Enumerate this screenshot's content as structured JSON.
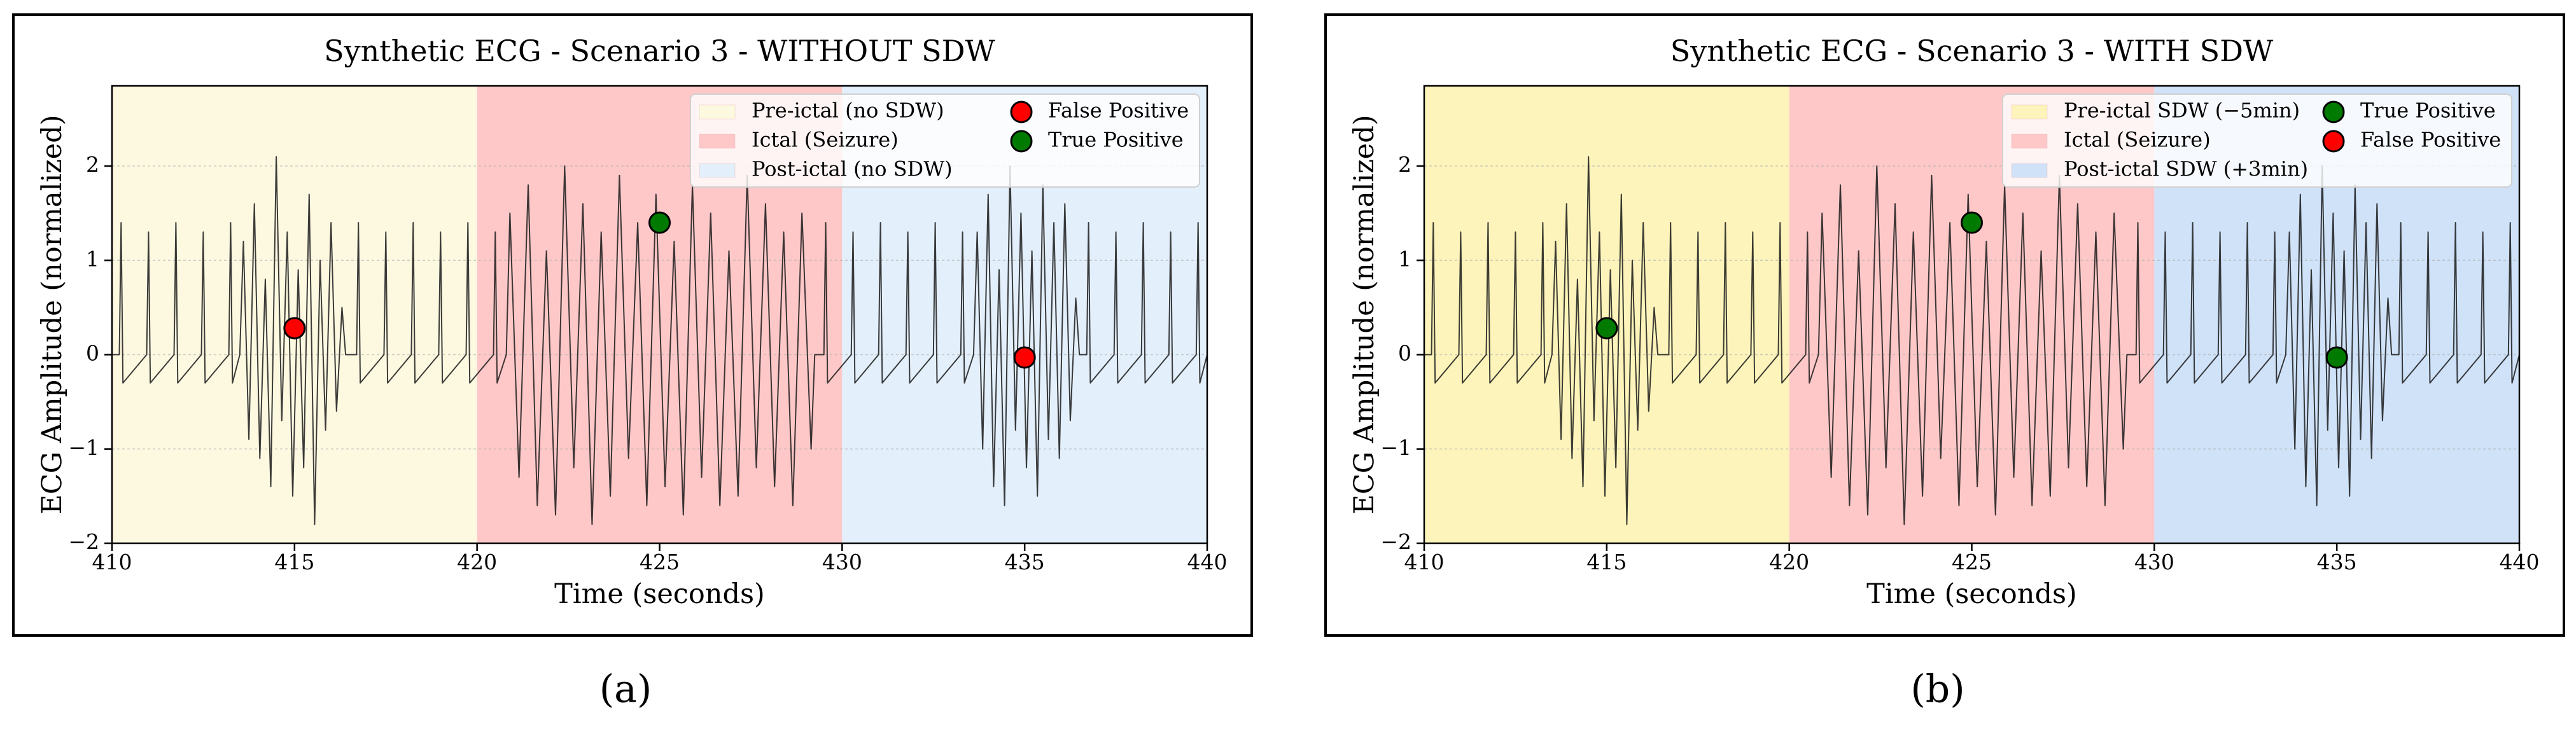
{
  "chart_data": [
    {
      "type": "line",
      "panel_label": "(a)",
      "title": "Synthetic ECG - Scenario 3 - WITHOUT SDW",
      "xlabel": "Time (seconds)",
      "ylabel": "ECG Amplitude (normalized)",
      "xlim": [
        410,
        440
      ],
      "ylim": [
        -2,
        2.85
      ],
      "xticks": [
        410,
        415,
        420,
        425,
        430,
        435,
        440
      ],
      "yticks": [
        {
          "value": -2,
          "label": "−2"
        },
        {
          "value": -1,
          "label": "−1"
        },
        0,
        1,
        2
      ],
      "grid": true,
      "legend": "upper right",
      "regions": [
        {
          "name": "Pre-ictal (no SDW)",
          "color": "#fdf9e1",
          "start": 410,
          "end": 420
        },
        {
          "name": "Ictal (Seizure)",
          "color": "#fec8c8",
          "start": 420,
          "end": 430
        },
        {
          "name": "Post-ictal (no SDW)",
          "color": "#e3effa",
          "start": 430,
          "end": 440
        }
      ],
      "ecg": {
        "color": "#1a1a1a",
        "x": [
          410,
          410.2,
          410.25,
          410.3,
          410.95,
          411,
          411.05,
          411.7,
          411.75,
          411.8,
          412.45,
          412.5,
          412.55,
          413.2,
          413.25,
          413.3,
          413.5,
          413.6,
          413.75,
          413.9,
          414.05,
          414.2,
          414.35,
          414.5,
          414.65,
          414.8,
          414.95,
          415.1,
          415.25,
          415.4,
          415.55,
          415.7,
          415.85,
          416.0,
          416.15,
          416.3,
          416.4,
          416.7,
          416.75,
          416.8,
          417.45,
          417.5,
          417.55,
          418.2,
          418.25,
          418.3,
          418.95,
          419,
          419.05,
          419.7,
          419.75,
          419.8,
          420.45,
          420.5,
          420.55,
          420.8,
          420.9,
          421.15,
          421.4,
          421.65,
          421.9,
          422.15,
          422.4,
          422.65,
          422.9,
          423.15,
          423.4,
          423.65,
          423.9,
          424.15,
          424.4,
          424.65,
          424.9,
          425.15,
          425.4,
          425.65,
          425.9,
          426.15,
          426.4,
          426.65,
          426.9,
          427.15,
          427.4,
          427.65,
          427.9,
          428.15,
          428.4,
          428.65,
          428.9,
          429.15,
          429.25,
          429.5,
          429.55,
          429.6,
          430.25,
          430.3,
          430.35,
          431,
          431.05,
          431.1,
          431.75,
          431.8,
          431.85,
          432.5,
          432.55,
          432.6,
          433.25,
          433.3,
          433.35,
          433.6,
          433.7,
          433.85,
          434,
          434.15,
          434.3,
          434.45,
          434.6,
          434.75,
          434.9,
          435.05,
          435.2,
          435.35,
          435.5,
          435.65,
          435.8,
          435.95,
          436.1,
          436.25,
          436.4,
          436.5,
          436.7,
          436.75,
          436.8,
          437.45,
          437.5,
          437.55,
          438.2,
          438.25,
          438.3,
          438.95,
          439,
          439.05,
          439.7,
          439.75,
          439.8,
          440
        ],
        "values": [
          0,
          0,
          1.4,
          -0.3,
          0,
          1.3,
          -0.3,
          0,
          1.4,
          -0.3,
          0,
          1.3,
          -0.3,
          0,
          1.4,
          -0.3,
          0,
          1.2,
          -0.9,
          1.6,
          -1.1,
          0.8,
          -1.4,
          2.1,
          -0.7,
          1.3,
          -1.5,
          0.9,
          -1.2,
          1.7,
          -1.8,
          1.0,
          -0.8,
          1.4,
          -0.6,
          0.5,
          0,
          0,
          1.4,
          -0.3,
          0,
          1.3,
          -0.3,
          0,
          1.4,
          -0.3,
          0,
          1.3,
          -0.3,
          0,
          1.4,
          -0.3,
          0,
          1.3,
          -0.3,
          0,
          1.5,
          -1.3,
          1.8,
          -1.6,
          1.1,
          -1.7,
          2.0,
          -1.2,
          1.6,
          -1.8,
          1.3,
          -1.5,
          1.9,
          -1.1,
          1.4,
          -1.6,
          1.7,
          -1.4,
          1.2,
          -1.7,
          1.8,
          -1.3,
          1.5,
          -1.6,
          1.1,
          -1.5,
          1.9,
          -1.2,
          1.6,
          -1.4,
          1.3,
          -1.6,
          1.5,
          -1.0,
          0,
          0,
          1.4,
          -0.3,
          0,
          1.3,
          -0.3,
          0,
          1.4,
          -0.3,
          0,
          1.3,
          -0.3,
          0,
          1.4,
          -0.3,
          0,
          1.3,
          -0.3,
          0,
          1.3,
          -1.0,
          1.7,
          -1.4,
          0.9,
          -1.6,
          2.0,
          -0.8,
          1.5,
          -1.2,
          1.1,
          -1.5,
          1.8,
          -0.9,
          1.4,
          -1.1,
          1.6,
          -0.7,
          0.6,
          0,
          0,
          1.4,
          -0.3,
          0,
          1.3,
          -0.3,
          0,
          1.4,
          -0.3,
          0,
          1.3,
          -0.3,
          0,
          1.4,
          -0.3,
          0
        ]
      },
      "markers": [
        {
          "name": "False Positive",
          "color": "#ff0000",
          "x": [
            415,
            435
          ],
          "values": [
            0.28,
            -0.03
          ]
        },
        {
          "name": "True Positive",
          "color": "#007a00",
          "x": [
            425
          ],
          "values": [
            1.4
          ]
        }
      ]
    },
    {
      "type": "line",
      "panel_label": "(b)",
      "title": "Synthetic ECG - Scenario 3 - WITH SDW",
      "xlabel": "Time (seconds)",
      "ylabel": "ECG Amplitude (normalized)",
      "xlim": [
        410,
        440
      ],
      "ylim": [
        -2,
        2.85
      ],
      "xticks": [
        410,
        415,
        420,
        425,
        430,
        435,
        440
      ],
      "yticks": [
        {
          "value": -2,
          "label": "−2"
        },
        {
          "value": -1,
          "label": "−1"
        },
        0,
        1,
        2
      ],
      "grid": true,
      "legend": "upper right",
      "regions": [
        {
          "name": "Pre-ictal SDW (−5min)",
          "color": "#fdf4bb",
          "start": 410,
          "end": 420
        },
        {
          "name": "Ictal (Seizure)",
          "color": "#fec8c8",
          "start": 420,
          "end": 430
        },
        {
          "name": "Post-ictal SDW (+3min)",
          "color": "#cfe2f8",
          "start": 430,
          "end": 440
        }
      ],
      "ecg": {
        "color": "#1a1a1a",
        "x": [
          410,
          410.2,
          410.25,
          410.3,
          410.95,
          411,
          411.05,
          411.7,
          411.75,
          411.8,
          412.45,
          412.5,
          412.55,
          413.2,
          413.25,
          413.3,
          413.5,
          413.6,
          413.75,
          413.9,
          414.05,
          414.2,
          414.35,
          414.5,
          414.65,
          414.8,
          414.95,
          415.1,
          415.25,
          415.4,
          415.55,
          415.7,
          415.85,
          416.0,
          416.15,
          416.3,
          416.4,
          416.7,
          416.75,
          416.8,
          417.45,
          417.5,
          417.55,
          418.2,
          418.25,
          418.3,
          418.95,
          419,
          419.05,
          419.7,
          419.75,
          419.8,
          420.45,
          420.5,
          420.55,
          420.8,
          420.9,
          421.15,
          421.4,
          421.65,
          421.9,
          422.15,
          422.4,
          422.65,
          422.9,
          423.15,
          423.4,
          423.65,
          423.9,
          424.15,
          424.4,
          424.65,
          424.9,
          425.15,
          425.4,
          425.65,
          425.9,
          426.15,
          426.4,
          426.65,
          426.9,
          427.15,
          427.4,
          427.65,
          427.9,
          428.15,
          428.4,
          428.65,
          428.9,
          429.15,
          429.25,
          429.5,
          429.55,
          429.6,
          430.25,
          430.3,
          430.35,
          431,
          431.05,
          431.1,
          431.75,
          431.8,
          431.85,
          432.5,
          432.55,
          432.6,
          433.25,
          433.3,
          433.35,
          433.6,
          433.7,
          433.85,
          434,
          434.15,
          434.3,
          434.45,
          434.6,
          434.75,
          434.9,
          435.05,
          435.2,
          435.35,
          435.5,
          435.65,
          435.8,
          435.95,
          436.1,
          436.25,
          436.4,
          436.5,
          436.7,
          436.75,
          436.8,
          437.45,
          437.5,
          437.55,
          438.2,
          438.25,
          438.3,
          438.95,
          439,
          439.05,
          439.7,
          439.75,
          439.8,
          440
        ],
        "values": [
          0,
          0,
          1.4,
          -0.3,
          0,
          1.3,
          -0.3,
          0,
          1.4,
          -0.3,
          0,
          1.3,
          -0.3,
          0,
          1.4,
          -0.3,
          0,
          1.2,
          -0.9,
          1.6,
          -1.1,
          0.8,
          -1.4,
          2.1,
          -0.7,
          1.3,
          -1.5,
          0.9,
          -1.2,
          1.7,
          -1.8,
          1.0,
          -0.8,
          1.4,
          -0.6,
          0.5,
          0,
          0,
          1.4,
          -0.3,
          0,
          1.3,
          -0.3,
          0,
          1.4,
          -0.3,
          0,
          1.3,
          -0.3,
          0,
          1.4,
          -0.3,
          0,
          1.3,
          -0.3,
          0,
          1.5,
          -1.3,
          1.8,
          -1.6,
          1.1,
          -1.7,
          2.0,
          -1.2,
          1.6,
          -1.8,
          1.3,
          -1.5,
          1.9,
          -1.1,
          1.4,
          -1.6,
          1.7,
          -1.4,
          1.2,
          -1.7,
          1.8,
          -1.3,
          1.5,
          -1.6,
          1.1,
          -1.5,
          1.9,
          -1.2,
          1.6,
          -1.4,
          1.3,
          -1.6,
          1.5,
          -1.0,
          0,
          0,
          1.4,
          -0.3,
          0,
          1.3,
          -0.3,
          0,
          1.4,
          -0.3,
          0,
          1.3,
          -0.3,
          0,
          1.4,
          -0.3,
          0,
          1.3,
          -0.3,
          0,
          1.3,
          -1.0,
          1.7,
          -1.4,
          0.9,
          -1.6,
          2.0,
          -0.8,
          1.5,
          -1.2,
          1.1,
          -1.5,
          1.8,
          -0.9,
          1.4,
          -1.1,
          1.6,
          -0.7,
          0.6,
          0,
          0,
          1.4,
          -0.3,
          0,
          1.3,
          -0.3,
          0,
          1.4,
          -0.3,
          0,
          1.3,
          -0.3,
          0,
          1.4,
          -0.3,
          0
        ]
      },
      "markers": [
        {
          "name": "True Positive",
          "color": "#007a00",
          "x": [
            415,
            425,
            435
          ],
          "values": [
            0.28,
            1.4,
            -0.03
          ]
        },
        {
          "name": "False Positive",
          "color": "#ff0000",
          "x": [],
          "values": []
        }
      ]
    }
  ]
}
